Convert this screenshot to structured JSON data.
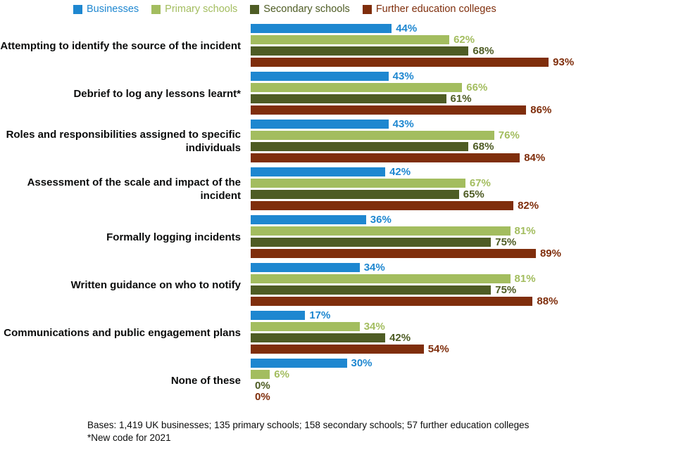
{
  "chart_data": {
    "type": "bar",
    "orientation": "horizontal",
    "unit": "%",
    "xlim": [
      0,
      100
    ],
    "grid": false,
    "legend_position": "top",
    "categories": [
      "Attempting to identify the source of the incident",
      "Debrief to log any lessons learnt*",
      "Roles and responsibilities assigned to specific individuals",
      "Assessment of the scale and impact of the incident",
      "Formally logging incidents",
      "Written guidance on who to notify",
      "Communications and public engagement plans",
      "None of these"
    ],
    "series": [
      {
        "name": "Businesses",
        "color": "#1e87d0",
        "values": [
          44,
          43,
          43,
          42,
          36,
          34,
          17,
          30
        ]
      },
      {
        "name": "Primary schools",
        "color": "#a3bd5f",
        "values": [
          62,
          66,
          76,
          67,
          81,
          81,
          34,
          6
        ]
      },
      {
        "name": "Secondary schools",
        "color": "#4e5c24",
        "values": [
          68,
          61,
          68,
          65,
          75,
          75,
          42,
          0
        ]
      },
      {
        "name": "Further education colleges",
        "color": "#7f2e0c",
        "values": [
          93,
          86,
          84,
          82,
          89,
          88,
          54,
          0
        ]
      }
    ]
  },
  "footnotes": [
    "Bases: 1,419 UK businesses; 135 primary schools; 158 secondary schools; 57 further education colleges",
    "*New code for 2021"
  ]
}
